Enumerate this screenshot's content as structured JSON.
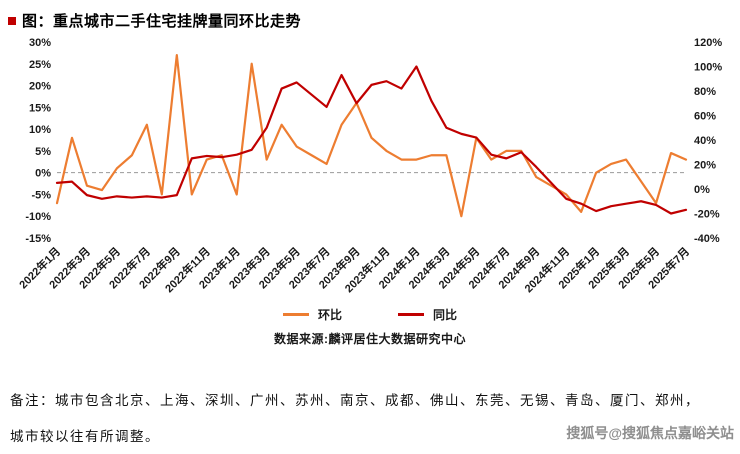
{
  "page": {
    "footnote_line1": "备注：城市包含北京、上海、深圳、广州、苏州、南京、成都、佛山、东莞、无锡、青岛、厦门、郑州，",
    "footnote_line2": "城市较以往有所调整。",
    "watermark": "搜狐号@搜狐焦点嘉峪关站",
    "source_note": "数据来源:麟评居住大数据研究中心"
  },
  "colors": {
    "mom_line": "#ED7D31",
    "yoy_line": "#C00000",
    "title_bullet": "#C00000",
    "axis_text": "#1a1a1a",
    "zero_gridline": "#999999",
    "watermark_text": "#8f8f8f"
  },
  "chart_data": {
    "type": "line",
    "title": "图：重点城市二手住宅挂牌量同环比走势",
    "categories": [
      "2022年1月",
      "2022年2月",
      "2022年3月",
      "2022年4月",
      "2022年5月",
      "2022年6月",
      "2022年7月",
      "2022年8月",
      "2022年9月",
      "2022年10月",
      "2022年11月",
      "2022年12月",
      "2023年1月",
      "2023年2月",
      "2023年3月",
      "2023年4月",
      "2023年5月",
      "2023年6月",
      "2023年7月",
      "2023年8月",
      "2023年9月",
      "2023年10月",
      "2023年11月",
      "2023年12月",
      "2024年1月",
      "2024年2月",
      "2024年3月",
      "2024年4月",
      "2024年5月",
      "2024年6月",
      "2024年7月",
      "2024年8月",
      "2024年9月",
      "2024年10月",
      "2024年11月",
      "2024年12月",
      "2025年1月",
      "2025年2月",
      "2025年3月",
      "2025年4月",
      "2025年5月",
      "2025年6月",
      "2025年7月"
    ],
    "x_tick_step": 2,
    "series": [
      {
        "name": "环比",
        "axis": "left",
        "color": "#ED7D31",
        "values": [
          -7,
          8,
          -3,
          -4,
          1,
          4,
          11,
          -5,
          27,
          -5,
          3,
          4,
          -5,
          25,
          3,
          11,
          6,
          4,
          2,
          11,
          16,
          8,
          5,
          3,
          3,
          4,
          4,
          -10,
          8,
          3,
          5,
          5,
          -1,
          -3,
          -5,
          -9,
          0,
          2,
          3,
          -2,
          -7,
          4.5,
          3
        ]
      },
      {
        "name": "同比",
        "axis": "right",
        "color": "#C00000",
        "values": [
          5,
          6,
          -5,
          -8,
          -6,
          -7,
          -6,
          -7,
          -5,
          25,
          27,
          26,
          28,
          32,
          50,
          82,
          87,
          77,
          67,
          93,
          70,
          85,
          88,
          82,
          100,
          72,
          50,
          45,
          42,
          28,
          25,
          30,
          18,
          5,
          -8,
          -12,
          -18,
          -14,
          -12,
          -10,
          -13,
          -20,
          -17
        ]
      }
    ],
    "left_axis": {
      "min": -15,
      "max": 30,
      "ticks": [
        30,
        25,
        20,
        15,
        10,
        5,
        0,
        -5,
        -10,
        -15
      ],
      "unit": "%"
    },
    "right_axis": {
      "min": -40,
      "max": 120,
      "ticks": [
        120,
        100,
        80,
        60,
        40,
        20,
        0,
        -20,
        -40
      ],
      "unit": "%"
    },
    "legend": [
      "环比",
      "同比"
    ],
    "legend_position": "bottom",
    "grid": "zero-line-dashed"
  }
}
